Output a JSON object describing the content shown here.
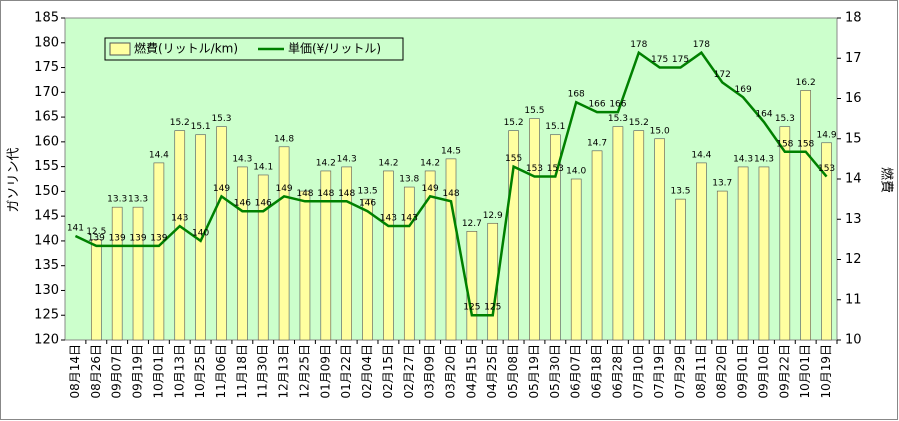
{
  "chart_data": {
    "type": "bar_line",
    "y_label": "ガソリン代",
    "y2_label": "燃費",
    "categories": [
      "08月14日",
      "08月26日",
      "09月07日",
      "09月19日",
      "10月01日",
      "10月13日",
      "10月25日",
      "11月06日",
      "11月18日",
      "11月30日",
      "12月13日",
      "12月25日",
      "01月09日",
      "01月22日",
      "02月04日",
      "02月15日",
      "02月27日",
      "03月09日",
      "03月20日",
      "04月15日",
      "04月25日",
      "05月08日",
      "05月19日",
      "05月30日",
      "06月07日",
      "06月18日",
      "06月28日",
      "07月10日",
      "07月19日",
      "07月29日",
      "08月11日",
      "08月20日",
      "09月01日",
      "09月10日",
      "09月22日",
      "10月01日",
      "10月19日"
    ],
    "series": [
      {
        "name": "燃費(リットル/km)",
        "color": "#ffffa0",
        "axis": "y2",
        "values": [
          null,
          12.5,
          13.3,
          13.3,
          14.4,
          15.2,
          15.1,
          15.3,
          14.3,
          14.1,
          14.8,
          13.7,
          14.2,
          14.3,
          13.5,
          14.2,
          13.8,
          14.2,
          14.5,
          12.7,
          12.9,
          15.2,
          15.5,
          15.1,
          14.0,
          14.7,
          15.3,
          15.2,
          15.0,
          13.5,
          14.4,
          13.7,
          14.3,
          14.3,
          15.3,
          16.2,
          14.9
        ],
        "value_labels": [
          null,
          "12.5",
          "13.3",
          "13.3",
          "14.4",
          "15.2",
          "15.1",
          "15.3",
          "14.3",
          "14.1",
          "14.8",
          null,
          "14.2",
          "14.3",
          "13.5",
          "14.2",
          "13.8",
          "14.2",
          "14.5",
          "12.7",
          "12.9",
          "15.2",
          "15.5",
          "15.1",
          "14.0",
          "14.7",
          "15.3",
          "15.2",
          "15.0",
          "13.5",
          "14.4",
          "13.7",
          "14.3",
          "14.3",
          "15.3",
          "16.2",
          "14.9"
        ]
      },
      {
        "name": "単価(¥/リットル)",
        "color": "#008000",
        "values": [
          141,
          139,
          139,
          139,
          139,
          143,
          140,
          149,
          146,
          146,
          149,
          148,
          148,
          148,
          146,
          143,
          143,
          149,
          148,
          125,
          125,
          155,
          153,
          153,
          168,
          166,
          166,
          178,
          175,
          175,
          178,
          172,
          169,
          164,
          158,
          158,
          153
        ]
      }
    ],
    "ylim": [
      120,
      185
    ],
    "yticks": [
      120,
      125,
      130,
      135,
      140,
      145,
      150,
      155,
      160,
      165,
      170,
      175,
      180,
      185
    ],
    "y2lim": [
      10,
      18
    ],
    "y2ticks": [
      10,
      11,
      12,
      13,
      14,
      15,
      16,
      17,
      18
    ],
    "legend": "top-left"
  }
}
